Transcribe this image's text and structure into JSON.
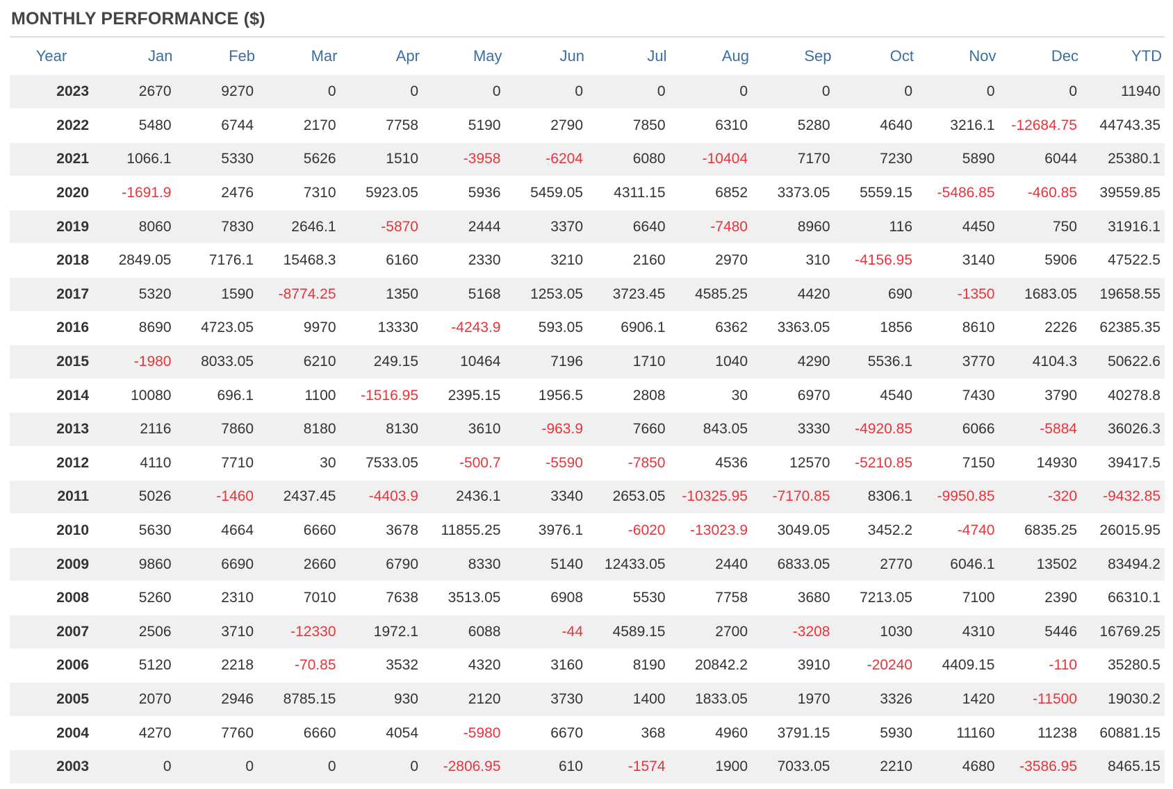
{
  "title": "MONTHLY PERFORMANCE ($)",
  "headers": [
    "Year",
    "Jan",
    "Feb",
    "Mar",
    "Apr",
    "May",
    "Jun",
    "Jul",
    "Aug",
    "Sep",
    "Oct",
    "Nov",
    "Dec",
    "YTD"
  ],
  "colors": {
    "header": "#3a6ea5",
    "negative": "#e8343a",
    "stripe": "#f0f0f0",
    "text": "#333333"
  },
  "rows": [
    [
      "2023",
      "2670",
      "9270",
      "0",
      "0",
      "0",
      "0",
      "0",
      "0",
      "0",
      "0",
      "0",
      "0",
      "11940"
    ],
    [
      "2022",
      "5480",
      "6744",
      "2170",
      "7758",
      "5190",
      "2790",
      "7850",
      "6310",
      "5280",
      "4640",
      "3216.1",
      "-12684.75",
      "44743.35"
    ],
    [
      "2021",
      "1066.1",
      "5330",
      "5626",
      "1510",
      "-3958",
      "-6204",
      "6080",
      "-10404",
      "7170",
      "7230",
      "5890",
      "6044",
      "25380.1"
    ],
    [
      "2020",
      "-1691.9",
      "2476",
      "7310",
      "5923.05",
      "5936",
      "5459.05",
      "4311.15",
      "6852",
      "3373.05",
      "5559.15",
      "-5486.85",
      "-460.85",
      "39559.85"
    ],
    [
      "2019",
      "8060",
      "7830",
      "2646.1",
      "-5870",
      "2444",
      "3370",
      "6640",
      "-7480",
      "8960",
      "116",
      "4450",
      "750",
      "31916.1"
    ],
    [
      "2018",
      "2849.05",
      "7176.1",
      "15468.3",
      "6160",
      "2330",
      "3210",
      "2160",
      "2970",
      "310",
      "-4156.95",
      "3140",
      "5906",
      "47522.5"
    ],
    [
      "2017",
      "5320",
      "1590",
      "-8774.25",
      "1350",
      "5168",
      "1253.05",
      "3723.45",
      "4585.25",
      "4420",
      "690",
      "-1350",
      "1683.05",
      "19658.55"
    ],
    [
      "2016",
      "8690",
      "4723.05",
      "9970",
      "13330",
      "-4243.9",
      "593.05",
      "6906.1",
      "6362",
      "3363.05",
      "1856",
      "8610",
      "2226",
      "62385.35"
    ],
    [
      "2015",
      "-1980",
      "8033.05",
      "6210",
      "249.15",
      "10464",
      "7196",
      "1710",
      "1040",
      "4290",
      "5536.1",
      "3770",
      "4104.3",
      "50622.6"
    ],
    [
      "2014",
      "10080",
      "696.1",
      "1100",
      "-1516.95",
      "2395.15",
      "1956.5",
      "2808",
      "30",
      "6970",
      "4540",
      "7430",
      "3790",
      "40278.8"
    ],
    [
      "2013",
      "2116",
      "7860",
      "8180",
      "8130",
      "3610",
      "-963.9",
      "7660",
      "843.05",
      "3330",
      "-4920.85",
      "6066",
      "-5884",
      "36026.3"
    ],
    [
      "2012",
      "4110",
      "7710",
      "30",
      "7533.05",
      "-500.7",
      "-5590",
      "-7850",
      "4536",
      "12570",
      "-5210.85",
      "7150",
      "14930",
      "39417.5"
    ],
    [
      "2011",
      "5026",
      "-1460",
      "2437.45",
      "-4403.9",
      "2436.1",
      "3340",
      "2653.05",
      "-10325.95",
      "-7170.85",
      "8306.1",
      "-9950.85",
      "-320",
      "-9432.85"
    ],
    [
      "2010",
      "5630",
      "4664",
      "6660",
      "3678",
      "11855.25",
      "3976.1",
      "-6020",
      "-13023.9",
      "3049.05",
      "3452.2",
      "-4740",
      "6835.25",
      "26015.95"
    ],
    [
      "2009",
      "9860",
      "6690",
      "2660",
      "6790",
      "8330",
      "5140",
      "12433.05",
      "2440",
      "6833.05",
      "2770",
      "6046.1",
      "13502",
      "83494.2"
    ],
    [
      "2008",
      "5260",
      "2310",
      "7010",
      "7638",
      "3513.05",
      "6908",
      "5530",
      "7758",
      "3680",
      "7213.05",
      "7100",
      "2390",
      "66310.1"
    ],
    [
      "2007",
      "2506",
      "3710",
      "-12330",
      "1972.1",
      "6088",
      "-44",
      "4589.15",
      "2700",
      "-3208",
      "1030",
      "4310",
      "5446",
      "16769.25"
    ],
    [
      "2006",
      "5120",
      "2218",
      "-70.85",
      "3532",
      "4320",
      "3160",
      "8190",
      "20842.2",
      "3910",
      "-20240",
      "4409.15",
      "-110",
      "35280.5"
    ],
    [
      "2005",
      "2070",
      "2946",
      "8785.15",
      "930",
      "2120",
      "3730",
      "1400",
      "1833.05",
      "1970",
      "3326",
      "1420",
      "-11500",
      "19030.2"
    ],
    [
      "2004",
      "4270",
      "7760",
      "6660",
      "4054",
      "-5980",
      "6670",
      "368",
      "4960",
      "3791.15",
      "5930",
      "11160",
      "11238",
      "60881.15"
    ],
    [
      "2003",
      "0",
      "0",
      "0",
      "0",
      "-2806.95",
      "610",
      "-1574",
      "1900",
      "7033.05",
      "2210",
      "4680",
      "-3586.95",
      "8465.15"
    ]
  ]
}
